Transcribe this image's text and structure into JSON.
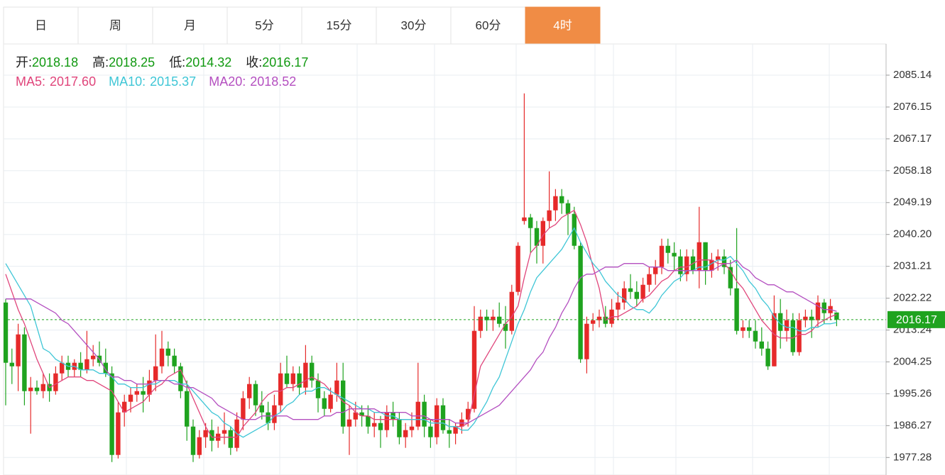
{
  "chart_data": {
    "type": "candlestick",
    "tabs": [
      "日",
      "周",
      "月",
      "5分",
      "15分",
      "30分",
      "60分",
      "4时"
    ],
    "active_tab": "4时",
    "info": [
      {
        "label": "开:",
        "value": "2018.18"
      },
      {
        "label": "高:",
        "value": "2018.25"
      },
      {
        "label": "低:",
        "value": "2014.32"
      },
      {
        "label": "收:",
        "value": "2016.17"
      }
    ],
    "up_color": "#e62a2a",
    "down_color": "#1fa31f",
    "grid": true,
    "ylim": [
      1972.34,
      2093.94
    ],
    "yticks": [
      2085.14,
      2076.15,
      2067.17,
      2058.18,
      2049.19,
      {
        "value": 2040.2,
        "label": "2040.20"
      },
      2031.21,
      2022.22,
      2013.24,
      2004.25,
      1995.26,
      1986.27,
      1977.28
    ],
    "current_price": 2016.17,
    "open": [
      2021,
      2004,
      2003,
      2012,
      1996,
      1997,
      1996,
      1998,
      1996,
      2001,
      2004,
      2002,
      2004,
      2002,
      2005,
      2006,
      2004,
      2001,
      1978,
      1990,
      1993,
      1995,
      1996,
      1995,
      1999,
      2003,
      2008,
      2006,
      2003,
      1996,
      1986,
      1978,
      1983,
      1985,
      1982,
      1984,
      1985,
      1980,
      1988,
      1994,
      1998,
      1992,
      1990,
      1987,
      1992,
      2001,
      1998,
      2001,
      1997,
      2004,
      1999,
      1994,
      1991,
      1995,
      1999,
      1986,
      1988,
      1990,
      1989,
      1986,
      1987,
      1985,
      1990,
      1988,
      1983,
      1985,
      1986,
      1993,
      1986,
      1983,
      1992,
      1985,
      1984,
      1986,
      1988,
      1991,
      2013,
      2017,
      2016,
      2017,
      2015,
      2013,
      2024,
      2044,
      2045,
      2042,
      2037,
      2044,
      2047,
      2051,
      2049,
      2046,
      2037,
      2005,
      2015,
      2016,
      2017,
      2015,
      2019,
      2021,
      2025,
      2024,
      2022,
      2026,
      2029,
      2031,
      2037,
      2035,
      2034,
      2029,
      2034,
      2030,
      2038,
      2030,
      2033,
      2034,
      2031,
      2025,
      2013,
      2014,
      2013,
      2010,
      2008,
      2003,
      2018,
      2013,
      2016,
      2007,
      2016,
      2017,
      2016,
      2021,
      2018,
      2018.18
    ],
    "high": [
      2022,
      2008,
      2015,
      2014,
      2000,
      1999,
      2001,
      2001,
      2003,
      2006,
      2006,
      2005,
      2007,
      2013,
      2009,
      2010,
      2008,
      2003,
      1993,
      1995,
      1997,
      1998,
      2000,
      2002,
      2012,
      2013,
      2010,
      2008,
      2004,
      1999,
      1988,
      1985,
      1987,
      1988,
      1986,
      1990,
      1986,
      1990,
      1996,
      2000,
      1999,
      1996,
      1993,
      1995,
      2004,
      2006,
      2003,
      2003,
      2009,
      2006,
      2001,
      1996,
      1997,
      2004,
      2004,
      1992,
      1993,
      1992,
      1992,
      1990,
      1989,
      1992,
      1993,
      1990,
      1987,
      1990,
      2004,
      1995,
      1988,
      1994,
      1994,
      1988,
      1987,
      1990,
      1993,
      2020,
      2019,
      2019,
      2019,
      2021,
      2020,
      2026,
      2038,
      2080,
      2046,
      2044,
      2045,
      2058,
      2053,
      2053,
      2050,
      2048,
      2038,
      2017,
      2018,
      2019,
      2020,
      2022,
      2024,
      2027,
      2029,
      2027,
      2028,
      2031,
      2033,
      2039,
      2039,
      2038,
      2036,
      2036,
      2036,
      2048,
      2038,
      2035,
      2036,
      2036,
      2033,
      2042,
      2016,
      2016,
      2016,
      2014,
      2010,
      2023,
      2022,
      2019,
      2018,
      2018,
      2019,
      2019,
      2023,
      2022,
      2022,
      2018.25
    ],
    "low": [
      1992,
      1998,
      1996,
      1992,
      1984,
      1995,
      1994,
      1993,
      1995,
      1999,
      2000,
      2000,
      2000,
      2001,
      2003,
      2003,
      2000,
      1976,
      1977,
      1986,
      1990,
      1993,
      1990,
      1993,
      1996,
      2001,
      2003,
      2001,
      1994,
      1982,
      1976,
      1977,
      1980,
      1979,
      1980,
      1981,
      1978,
      1979,
      1985,
      1991,
      1989,
      1988,
      1985,
      1985,
      1990,
      1997,
      1996,
      1995,
      1995,
      1997,
      1990,
      1989,
      1990,
      1993,
      1984,
      1978,
      1986,
      1986,
      1984,
      1983,
      1980,
      1983,
      1986,
      1981,
      1980,
      1983,
      1985,
      1983,
      1980,
      1981,
      1984,
      1980,
      1981,
      1984,
      1986,
      1990,
      2011,
      2013,
      2013,
      2014,
      2008,
      2012,
      2023,
      2043,
      2035,
      2032,
      2032,
      2042,
      2044,
      2046,
      2040,
      2036,
      2004,
      2001,
      2013,
      2014,
      2014,
      2014,
      2016,
      2019,
      2022,
      2020,
      2021,
      2024,
      2026,
      2029,
      2032,
      2030,
      2027,
      2027,
      2029,
      2025,
      2026,
      2028,
      2030,
      2029,
      2023,
      2012,
      2011,
      2011,
      2008,
      2006,
      2002,
      2003,
      2008,
      2010,
      2006,
      2006,
      2014,
      2011,
      2014,
      2015,
      2016,
      2014.32
    ],
    "close": [
      2004,
      2003,
      2012,
      1996,
      1997,
      1996,
      1998,
      1996,
      2001,
      2004,
      2002,
      2004,
      2002,
      2005,
      2006,
      2004,
      2001,
      1978,
      1990,
      1993,
      1995,
      1996,
      1995,
      1999,
      2003,
      2008,
      2006,
      2003,
      1996,
      1986,
      1978,
      1983,
      1985,
      1982,
      1984,
      1985,
      1980,
      1988,
      1994,
      1998,
      1992,
      1990,
      1987,
      1992,
      2001,
      1998,
      2001,
      1997,
      2004,
      1999,
      1994,
      1991,
      1995,
      1999,
      1986,
      1988,
      1990,
      1989,
      1986,
      1987,
      1985,
      1990,
      1988,
      1983,
      1985,
      1986,
      1993,
      1986,
      1983,
      1992,
      1985,
      1984,
      1986,
      1988,
      1991,
      2013,
      2017,
      2016,
      2017,
      2015,
      2013,
      2024,
      2037,
      2045,
      2042,
      2037,
      2044,
      2047,
      2051,
      2049,
      2046,
      2037,
      2005,
      2015,
      2016,
      2017,
      2015,
      2019,
      2021,
      2025,
      2024,
      2022,
      2026,
      2029,
      2031,
      2037,
      2035,
      2034,
      2029,
      2034,
      2030,
      2038,
      2030,
      2033,
      2034,
      2031,
      2025,
      2013,
      2014,
      2013,
      2010,
      2008,
      2003,
      2018,
      2013,
      2016,
      2007,
      2016,
      2017,
      2016,
      2021,
      2018,
      2020,
      2016.17
    ],
    "series": [
      {
        "name": "MA5:",
        "legend_value": "2017.60",
        "color": "#e0457b",
        "values": [
          2029,
          2024,
          2019,
          2015,
          2010,
          2005,
          2001,
          1997,
          1998,
          1999,
          2000,
          2000,
          2000,
          1999,
          1999,
          1998,
          1997,
          1996,
          1993,
          1990,
          1991,
          1992,
          1993,
          1995,
          1997,
          1998,
          2000,
          2001,
          2002,
          1998,
          1994,
          1990,
          1986,
          1983,
          1983,
          1983,
          1983,
          1983,
          1986,
          1988,
          1990,
          1993,
          1995,
          1996,
          1996,
          1997,
          1997,
          1998,
          1999,
          2000,
          1999,
          1998,
          1996,
          1995,
          1993,
          1992,
          1990,
          1989,
          1989,
          1988,
          1988,
          1988,
          1988,
          1988,
          1988,
          1988,
          1988,
          1988,
          1988,
          1987,
          1987,
          1986,
          1986,
          1986,
          1987,
          1995,
          2003,
          2006,
          2009,
          2012,
          2015,
          2017,
          2020,
          2028,
          2035,
          2037,
          2040,
          2042,
          2043,
          2045,
          2046,
          2047,
          2043,
          2038,
          2031,
          2025,
          2016,
          2017,
          2017,
          2018,
          2019,
          2020,
          2022,
          2023,
          2025,
          2027,
          2028,
          2030,
          2031,
          2031,
          2032,
          2033,
          2033,
          2033,
          2032,
          2032,
          2030,
          2027,
          2025,
          2022,
          2019,
          2016,
          2014,
          2012,
          2011,
          2011,
          2011,
          2012,
          2012,
          2013,
          2015,
          2016,
          2017,
          2017.6
        ]
      },
      {
        "name": "MA10:",
        "legend_value": "2015.37",
        "color": "#3fc6d6",
        "values": [
          2032,
          2029,
          2026,
          2023,
          2020,
          2014,
          2008,
          2007,
          2005,
          2004,
          2003,
          2003,
          2002,
          2002,
          2002,
          2001,
          2001,
          2000,
          1998,
          1998,
          1997,
          1997,
          1997,
          1998,
          1998,
          1999,
          1999,
          1999,
          1998,
          1998,
          1996,
          1994,
          1992,
          1990,
          1989,
          1987,
          1986,
          1984,
          1983,
          1984,
          1985,
          1986,
          1987,
          1989,
          1990,
          1992,
          1993,
          1995,
          1996,
          1996,
          1997,
          1997,
          1996,
          1995,
          1994,
          1993,
          1992,
          1991,
          1991,
          1990,
          1990,
          1989,
          1989,
          1988,
          1988,
          1988,
          1988,
          1988,
          1987,
          1987,
          1987,
          1986,
          1986,
          1985,
          1985,
          1987,
          1990,
          1993,
          1997,
          2000,
          2005,
          2010,
          2015,
          2019,
          2024,
          2028,
          2030,
          2032,
          2034,
          2036,
          2039,
          2042,
          2038,
          2035,
          2032,
          2030,
          2027,
          2025,
          2023,
          2022,
          2020,
          2019,
          2019,
          2018,
          2020,
          2023,
          2025,
          2027,
          2028,
          2030,
          2030,
          2031,
          2031,
          2032,
          2033,
          2033,
          2034,
          2032,
          2030,
          2027,
          2025,
          2022,
          2020,
          2017,
          2015,
          2014,
          2014,
          2013,
          2013,
          2014,
          2014,
          2015,
          2015,
          2015.37
        ]
      },
      {
        "name": "MA20:",
        "legend_value": "2018.52",
        "color": "#b44fc0",
        "values": [
          2022,
          2022,
          2022,
          2022,
          2022,
          2021,
          2020,
          2019,
          2018,
          2016,
          2015,
          2013,
          2011,
          2009,
          2007,
          2005,
          2002,
          2000,
          2000,
          1999,
          1999,
          1998,
          1998,
          1998,
          1999,
          1999,
          1999,
          1998,
          1998,
          1997,
          1997,
          1996,
          1995,
          1994,
          1992,
          1991,
          1990,
          1989,
          1988,
          1988,
          1988,
          1989,
          1989,
          1989,
          1989,
          1989,
          1988,
          1988,
          1988,
          1988,
          1988,
          1989,
          1989,
          1990,
          1990,
          1991,
          1991,
          1991,
          1991,
          1991,
          1990,
          1990,
          1990,
          1990,
          1990,
          1989,
          1989,
          1989,
          1988,
          1988,
          1988,
          1988,
          1987,
          1987,
          1987,
          1988,
          1989,
          1990,
          1991,
          1992,
          1994,
          1996,
          1998,
          2000,
          2002,
          2005,
          2007,
          2011,
          2014,
          2018,
          2021,
          2025,
          2028,
          2029,
          2029,
          2030,
          2031,
          2031,
          2031,
          2032,
          2032,
          2032,
          2032,
          2031,
          2031,
          2031,
          2030,
          2030,
          2030,
          2030,
          2030,
          2030,
          2030,
          2030,
          2031,
          2032,
          2032,
          2033,
          2031,
          2030,
          2028,
          2027,
          2026,
          2026,
          2025,
          2024,
          2024,
          2023,
          2022,
          2021,
          2020,
          2019,
          2019,
          2018.52
        ]
      }
    ]
  }
}
